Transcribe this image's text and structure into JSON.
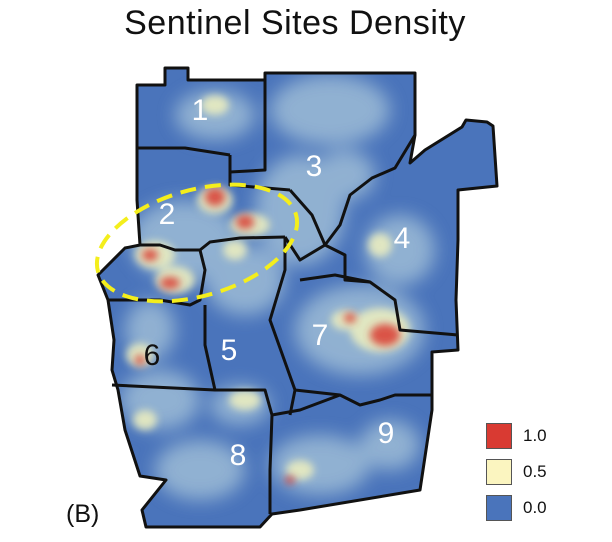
{
  "title": "Sentinel Sites Density",
  "panel_label": "(B)",
  "regions": [
    {
      "label": "1"
    },
    {
      "label": "2"
    },
    {
      "label": "3"
    },
    {
      "label": "4"
    },
    {
      "label": "5"
    },
    {
      "label": "6"
    },
    {
      "label": "7"
    },
    {
      "label": "8"
    },
    {
      "label": "9"
    }
  ],
  "legend": [
    {
      "label": "1.0",
      "color": "#d93a32"
    },
    {
      "label": "0.5",
      "color": "#fbf5c0"
    },
    {
      "label": "0.0",
      "color": "#4a74bb"
    }
  ],
  "colors": {
    "base": "#4a74bb",
    "low": "#9dbcd6",
    "mid": "#e9ecc0",
    "high": "#d93a32",
    "border": "#111111",
    "highlight": "#f4ee1c"
  }
}
